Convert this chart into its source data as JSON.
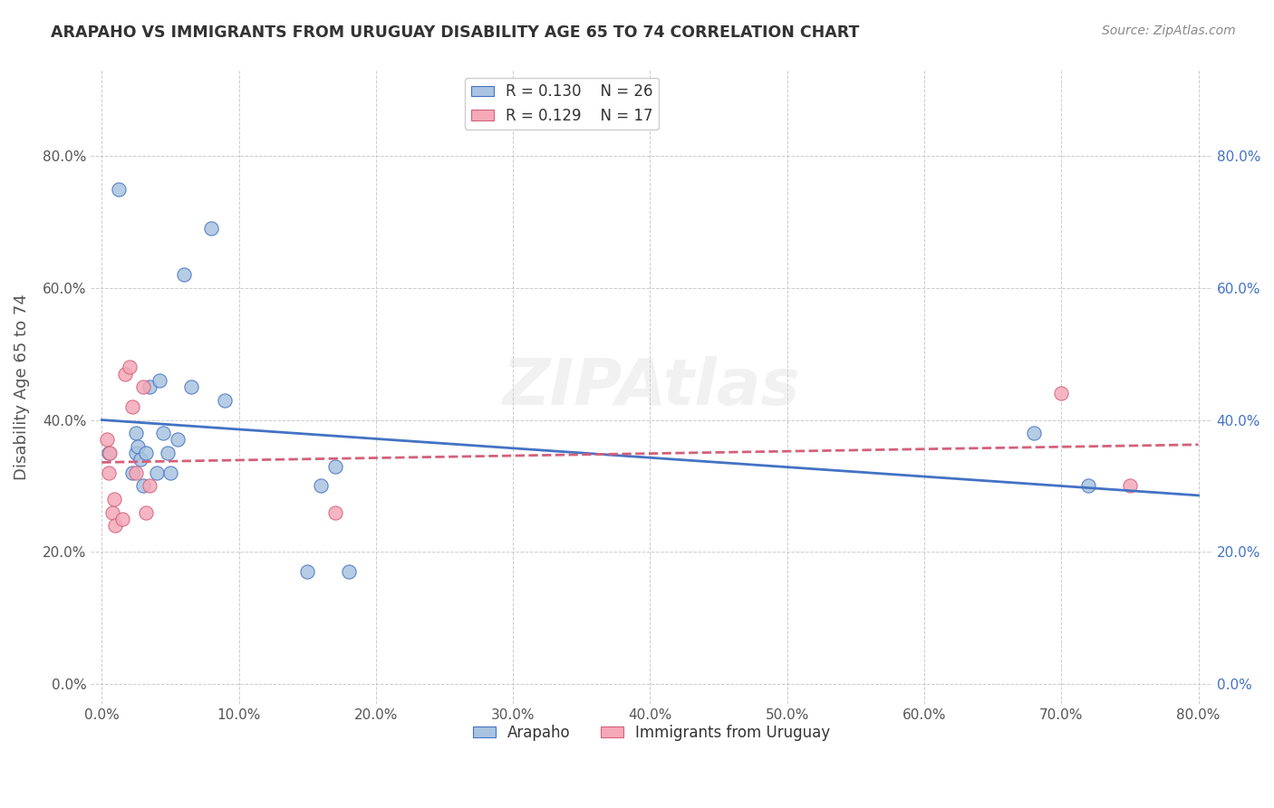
{
  "title": "ARAPAHO VS IMMIGRANTS FROM URUGUAY DISABILITY AGE 65 TO 74 CORRELATION CHART",
  "source": "Source: ZipAtlas.com",
  "ylabel": "Disability Age 65 to 74",
  "legend_label1": "Arapaho",
  "legend_label2": "Immigrants from Uruguay",
  "r1": "0.130",
  "n1": "26",
  "r2": "0.129",
  "n2": "17",
  "xlim": [
    -0.008,
    0.81
  ],
  "ylim": [
    -0.03,
    0.93
  ],
  "xticks": [
    0.0,
    0.1,
    0.2,
    0.3,
    0.4,
    0.5,
    0.6,
    0.7,
    0.8
  ],
  "yticks": [
    0.0,
    0.2,
    0.4,
    0.6,
    0.8
  ],
  "color_blue": "#a8c4e0",
  "color_pink": "#f4a8b8",
  "line_blue": "#4472c4",
  "line_pink": "#d4607a",
  "background": "#ffffff",
  "arapaho_x": [
    0.005,
    0.012,
    0.022,
    0.025,
    0.025,
    0.026,
    0.028,
    0.03,
    0.032,
    0.035,
    0.04,
    0.042,
    0.045,
    0.048,
    0.05,
    0.055,
    0.06,
    0.065,
    0.08,
    0.09,
    0.15,
    0.16,
    0.17,
    0.18,
    0.68,
    0.72
  ],
  "arapaho_y": [
    0.35,
    0.75,
    0.32,
    0.35,
    0.38,
    0.36,
    0.34,
    0.3,
    0.35,
    0.45,
    0.32,
    0.46,
    0.38,
    0.35,
    0.32,
    0.37,
    0.62,
    0.45,
    0.69,
    0.43,
    0.17,
    0.3,
    0.33,
    0.17,
    0.38,
    0.3
  ],
  "uruguay_x": [
    0.004,
    0.005,
    0.006,
    0.008,
    0.009,
    0.01,
    0.015,
    0.017,
    0.02,
    0.022,
    0.025,
    0.03,
    0.032,
    0.035,
    0.17,
    0.7,
    0.75
  ],
  "uruguay_y": [
    0.37,
    0.32,
    0.35,
    0.26,
    0.28,
    0.24,
    0.25,
    0.47,
    0.48,
    0.42,
    0.32,
    0.45,
    0.26,
    0.3,
    0.26,
    0.44,
    0.3
  ]
}
